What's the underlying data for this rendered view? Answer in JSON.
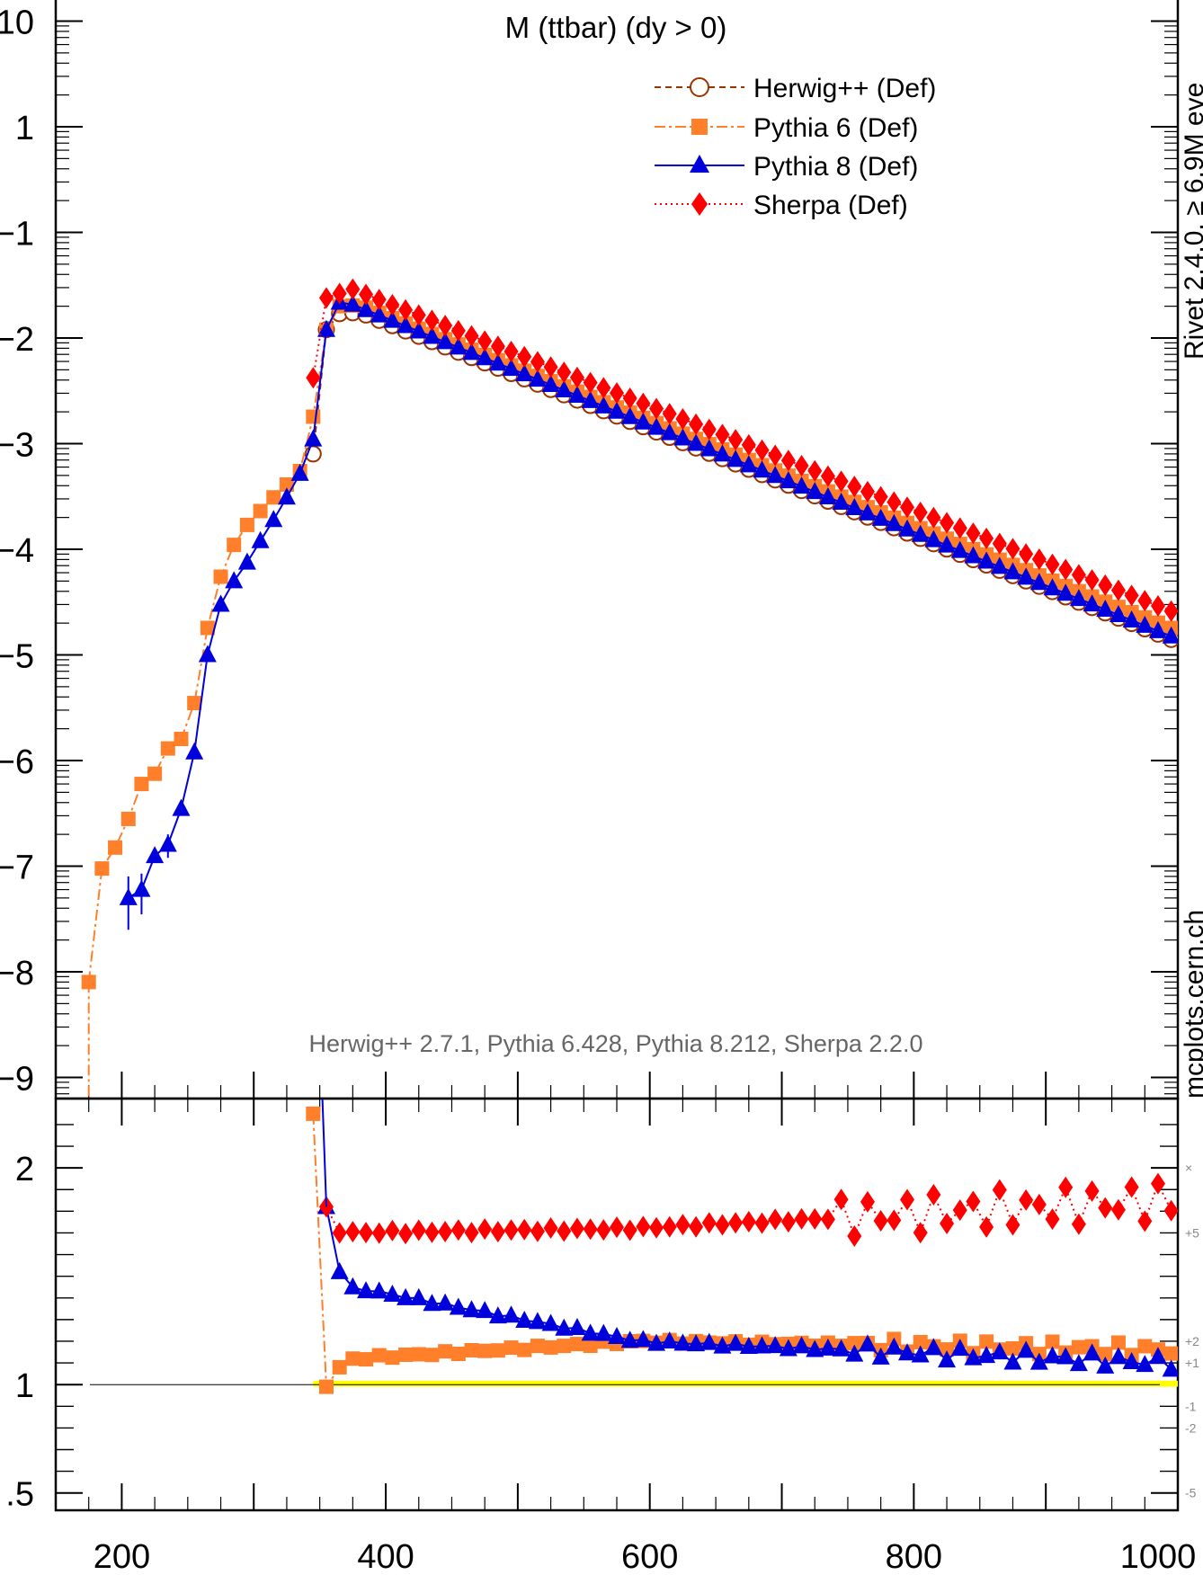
{
  "chart_data": [
    {
      "type": "line",
      "title": "M (ttbar) (dy > 0)",
      "yscale": "log",
      "xlim": [
        150,
        1000
      ],
      "ylim_exponent_range": [
        -9.2,
        1.2
      ],
      "y_tick_labels": [
        "10",
        "1",
        "0−1",
        "0−2",
        "0−3",
        "0−4",
        "0−5",
        "0−6",
        "0−7",
        "0−8",
        "0−9"
      ],
      "legend": {
        "position": "top-right",
        "entries": [
          "Herwig++ (Def)",
          "Pythia 6 (Def)",
          "Pythia 8 (Def)",
          "Sherpa (Def)"
        ]
      },
      "annotation": "Herwig++ 2.7.1, Pythia 6.428, Pythia 8.212, Sherpa 2.2.0",
      "side_labels": [
        "Rivet 2.4.0, ≥ 6.9M eve",
        "mcplots.cern.ch"
      ],
      "series": [
        {
          "name": "Herwig++ (Def)",
          "color": "#993300",
          "marker": "open-circle",
          "x": [
            345,
            355
          ],
          "y": [
            0.0008,
            0.012
          ],
          "tail": {
            "x_start": 365,
            "x_end": 995,
            "y_start": 0.017,
            "y_end": 1.4e-05,
            "peak_x": 380,
            "peak_y": 0.0175
          }
        },
        {
          "name": "Pythia 6 (Def)",
          "color": "#ff7f2a",
          "marker": "square",
          "x": [
            175,
            185,
            195,
            205,
            215,
            225,
            235,
            245,
            255,
            265,
            275,
            285,
            295,
            305,
            315,
            325,
            335,
            345,
            355
          ],
          "y": [
            8e-09,
            9.5e-08,
            1.5e-07,
            2.8e-07,
            6e-07,
            7.5e-07,
            1.3e-06,
            1.6e-06,
            3.5e-06,
            1.8e-05,
            5.5e-05,
            0.00011,
            0.00017,
            0.00023,
            0.00031,
            0.00041,
            0.00055,
            0.0018,
            0.012
          ],
          "tail": {
            "x_start": 365,
            "x_end": 995,
            "y_start": 0.02,
            "y_end": 1.8e-05,
            "peak_x": 380,
            "peak_y": 0.0205
          }
        },
        {
          "name": "Pythia 8 (Def)",
          "color": "#0000dd",
          "marker": "triangle",
          "x": [
            205,
            215,
            225,
            235,
            245,
            255,
            265,
            275,
            285,
            295,
            305,
            315,
            325,
            335,
            345,
            355
          ],
          "y": [
            5e-08,
            6e-08,
            1.25e-07,
            1.6e-07,
            3.5e-07,
            1.2e-06,
            1e-05,
            3e-05,
            5e-05,
            7.5e-05,
            0.00012,
            0.00019,
            0.00031,
            0.00052,
            0.0011,
            0.012
          ],
          "tail": {
            "x_start": 355,
            "x_end": 995,
            "y_start": 0.021,
            "y_end": 1.5e-05,
            "peak_x": 370,
            "peak_y": 0.022
          }
        },
        {
          "name": "Sherpa (Def)",
          "color": "#ff0000",
          "marker": "diamond",
          "x": [
            345
          ],
          "y": [
            0.0042
          ],
          "tail": {
            "x_start": 355,
            "x_end": 995,
            "y_start": 0.024,
            "y_end": 2.6e-05,
            "peak_x": 375,
            "peak_y": 0.029
          }
        }
      ]
    },
    {
      "type": "line",
      "ylim": [
        0.42,
        2.32
      ],
      "y_tick_labels": [
        "2",
        "1",
        ".5"
      ],
      "x_tick_labels": [
        "200",
        "400",
        "600",
        "800",
        "1000"
      ],
      "reference": {
        "value": 1.0,
        "color": "#ffff00"
      },
      "band_labels": [
        "×",
        "+5",
        "+2",
        "+1",
        "-1",
        "-2",
        "-5"
      ],
      "series": [
        {
          "name": "Pythia 6 (Def)",
          "x": [
            345,
            355,
            365,
            375
          ],
          "y": [
            2.25,
            0.99,
            1.08,
            1.12
          ],
          "tail": {
            "level_mid": 1.2,
            "level_end": 1.16
          }
        },
        {
          "name": "Pythia 8 (Def)",
          "x": [
            355,
            365,
            375
          ],
          "y": [
            1.82,
            1.52,
            1.45
          ],
          "tail": {
            "level_mid": 1.2,
            "level_end": 1.1
          }
        },
        {
          "name": "Sherpa (Def)",
          "x": [
            355,
            365
          ],
          "y": [
            1.82,
            1.7
          ],
          "tail": {
            "level_mid": 1.72,
            "level_end": 1.85
          }
        }
      ]
    }
  ]
}
